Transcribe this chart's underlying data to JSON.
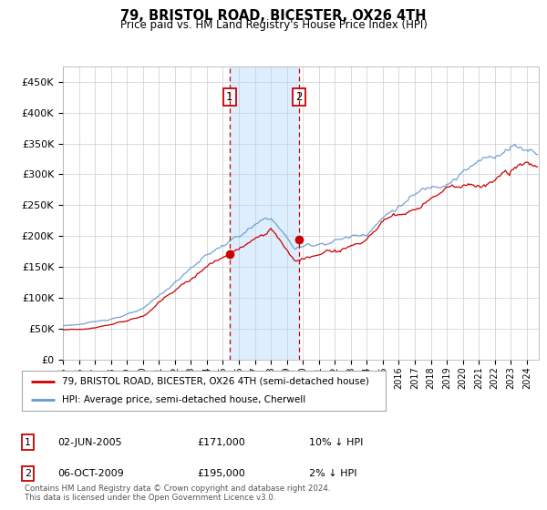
{
  "title": "79, BRISTOL ROAD, BICESTER, OX26 4TH",
  "subtitle": "Price paid vs. HM Land Registry's House Price Index (HPI)",
  "footer": "Contains HM Land Registry data © Crown copyright and database right 2024.\nThis data is licensed under the Open Government Licence v3.0.",
  "legend_line1": "79, BRISTOL ROAD, BICESTER, OX26 4TH (semi-detached house)",
  "legend_line2": "HPI: Average price, semi-detached house, Cherwell",
  "sale1_label": "1",
  "sale1_date": "02-JUN-2005",
  "sale1_price": "£171,000",
  "sale1_hpi": "10% ↓ HPI",
  "sale2_label": "2",
  "sale2_date": "06-OCT-2009",
  "sale2_price": "£195,000",
  "sale2_hpi": "2% ↓ HPI",
  "red_color": "#cc0000",
  "blue_color": "#6699cc",
  "shade_color": "#ddeeff",
  "bg_color": "#ffffff",
  "grid_color": "#cccccc",
  "ylim": [
    0,
    475000
  ],
  "yticks": [
    0,
    50000,
    100000,
    150000,
    200000,
    250000,
    300000,
    350000,
    400000,
    450000
  ],
  "sale1_x": 2005.42,
  "sale1_y": 171000,
  "sale2_x": 2009.75,
  "sale2_y": 195000,
  "shade_x1": 2005.42,
  "shade_x2": 2009.75,
  "xmin": 1995.0,
  "xmax": 2024.75
}
